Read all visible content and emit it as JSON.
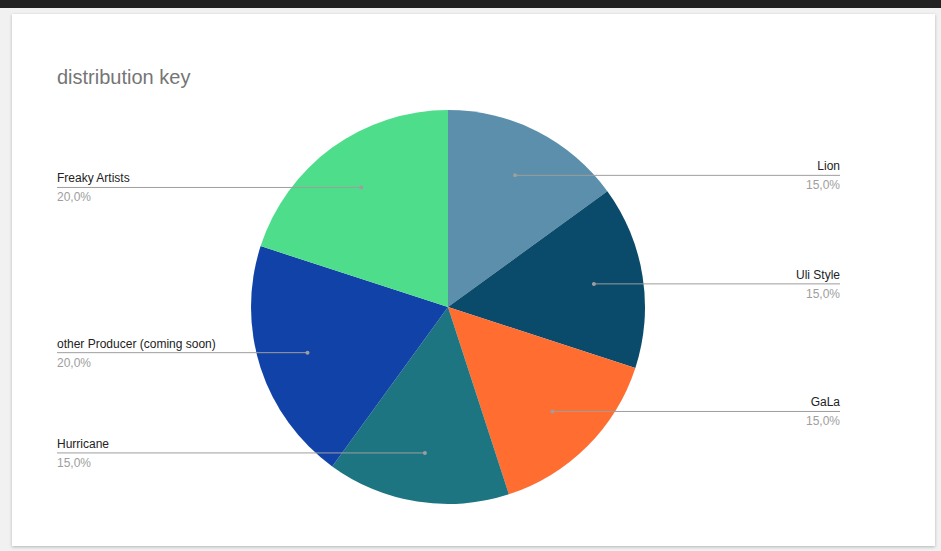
{
  "chart_data": {
    "type": "pie",
    "title": "distribution key",
    "categories": [
      "Lion",
      "Uli Style",
      "GaLa",
      "Hurricane",
      "other Producer (coming soon)",
      "Freaky Artists"
    ],
    "values": [
      15,
      15,
      15,
      15,
      20,
      20
    ],
    "value_labels": [
      "15,0%",
      "15,0%",
      "15,0%",
      "15,0%",
      "20,0%",
      "20,0%"
    ],
    "colors": [
      "#5b8fab",
      "#0a4a6a",
      "#ff6d31",
      "#1c7580",
      "#1142a8",
      "#4ddd8b"
    ],
    "data_labels": true
  }
}
